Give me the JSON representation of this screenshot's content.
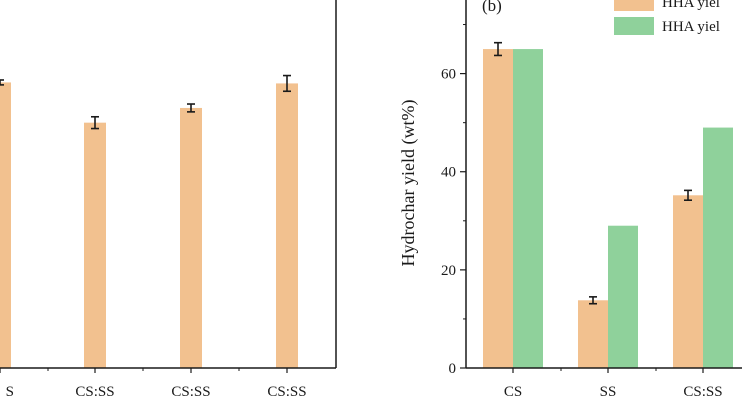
{
  "colors": {
    "orange": "#f2c18f",
    "green": "#8fd19b",
    "axis": "#1a1a1a"
  },
  "chart_data": [
    {
      "panel": "left",
      "type": "bar",
      "categories": [
        "S",
        "CS:SS",
        "CS:SS",
        "CS:SS"
      ],
      "series": [
        {
          "values": [
            58.2,
            50.0,
            53.0,
            58.0
          ],
          "errors": [
            0.5,
            1.2,
            0.8,
            1.6
          ],
          "color": "orange"
        }
      ],
      "ylim": [
        0,
        75
      ]
    },
    {
      "panel": "right",
      "type": "bar",
      "panel_label": "(b)",
      "categories": [
        "CS",
        "SS",
        "CS:SS"
      ],
      "ylabel": "Hydrochar yield (wt%)",
      "yticks": [
        "0",
        "20",
        "40",
        "60"
      ],
      "ylim": [
        0,
        75
      ],
      "legend": [
        "HHA yiel",
        "HHA yiel"
      ],
      "series": [
        {
          "name": "HHA yiel",
          "values": [
            65,
            13.8,
            35.2
          ],
          "errors": [
            1.3,
            0.7,
            1.0
          ],
          "color": "orange"
        },
        {
          "name": "HHA yiel",
          "values": [
            65,
            29,
            49
          ],
          "color": "green"
        }
      ]
    }
  ]
}
